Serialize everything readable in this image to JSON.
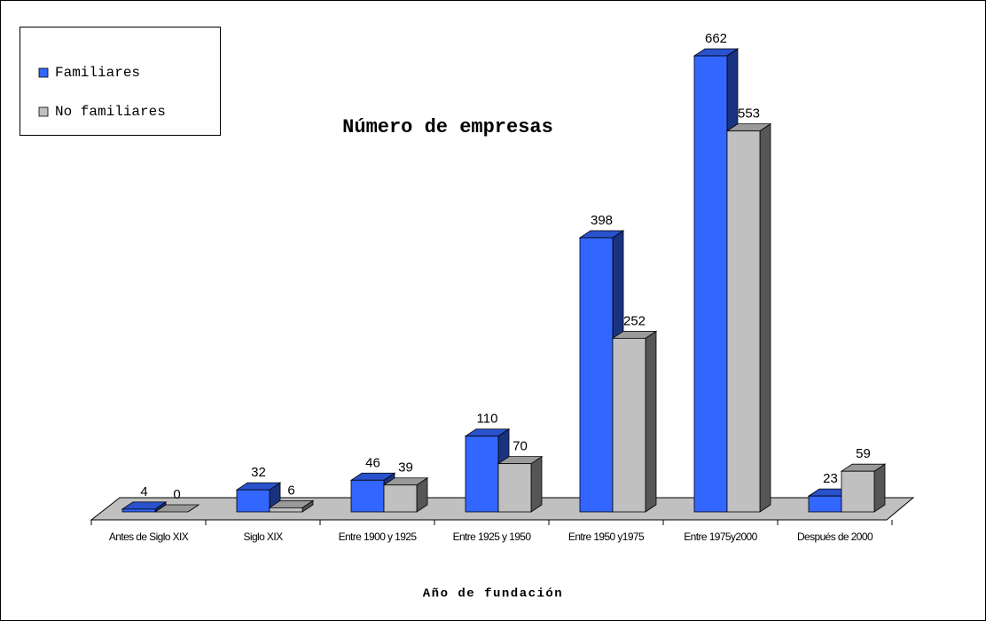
{
  "chart_data": {
    "type": "bar3d",
    "title": "Número de empresas",
    "x_label": "Año de fundación",
    "categories": [
      "Antes de Siglo XIX",
      "Siglo XIX",
      "Entre 1900 y 1925",
      "Entre 1925 y 1950",
      "Entre 1950 y1975",
      "Entre 1975y2000",
      "Después de 2000"
    ],
    "series": [
      {
        "name": "Familiares",
        "color": "#3366ff",
        "values": [
          4,
          32,
          46,
          110,
          398,
          662,
          23
        ]
      },
      {
        "name": "No familiares",
        "color": "#c0c0c0",
        "values": [
          0,
          6,
          39,
          70,
          252,
          553,
          59
        ]
      }
    ],
    "legend": "upper left"
  }
}
